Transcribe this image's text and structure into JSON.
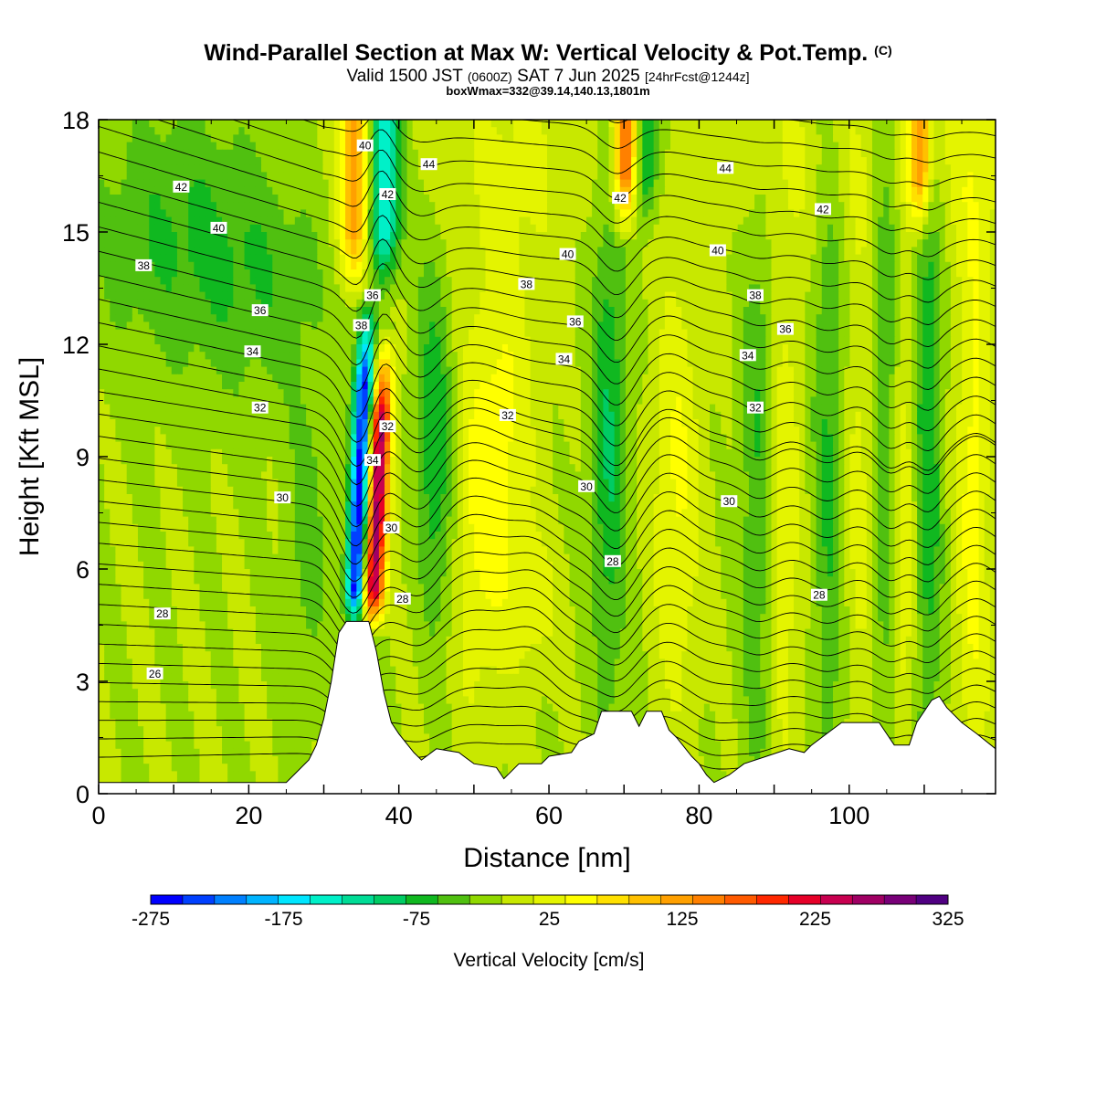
{
  "header": {
    "title": "Wind-Parallel Section at Max W: Vertical Velocity & Pot.Temp.",
    "copyright": "(C)",
    "valid_prefix": "Valid 1500 JST",
    "valid_utc": "(0600Z)",
    "valid_date": "SAT 7 Jun 2025",
    "forecast_info": "[24hrFcst@1244z]",
    "box_info": "boxWmax=332@39.14,140.13,1801m"
  },
  "chart_data": {
    "type": "heatmap",
    "xlabel": "Distance [nm]",
    "ylabel": "Height [Kft MSL]",
    "xlim": [
      0,
      119.5
    ],
    "ylim": [
      0,
      18
    ],
    "x_ticks": [
      0,
      20,
      40,
      60,
      80,
      100
    ],
    "y_ticks": [
      0,
      3,
      6,
      9,
      12,
      15,
      18
    ],
    "colorbar": {
      "title": "Vertical Velocity [cm/s]",
      "levels": [
        -275,
        -250,
        -225,
        -200,
        -175,
        -150,
        -125,
        -100,
        -75,
        -50,
        -25,
        0,
        25,
        50,
        75,
        100,
        125,
        150,
        175,
        200,
        225,
        250,
        275,
        300,
        325
      ],
      "labels": [
        "-275",
        "-175",
        "-75",
        "25",
        "125",
        "225",
        "325"
      ],
      "colors": [
        "#0000ff",
        "#0040ff",
        "#0080ff",
        "#00b4ff",
        "#00e6ff",
        "#00f0c8",
        "#00dc96",
        "#00cc64",
        "#10b820",
        "#50c010",
        "#90d800",
        "#c8e800",
        "#e4f400",
        "#ffff00",
        "#ffe000",
        "#ffc000",
        "#ffa000",
        "#ff8000",
        "#ff5a00",
        "#ff2800",
        "#e60028",
        "#c80050",
        "#a00064",
        "#780078",
        "#500082"
      ]
    },
    "terrain_kft": [
      [
        0,
        0.3
      ],
      [
        25,
        0.3
      ],
      [
        26,
        0.5
      ],
      [
        28,
        0.9
      ],
      [
        29,
        1.3
      ],
      [
        30,
        2.0
      ],
      [
        31,
        3.0
      ],
      [
        32,
        4.3
      ],
      [
        33,
        4.6
      ],
      [
        36,
        4.6
      ],
      [
        37,
        3.8
      ],
      [
        38,
        2.7
      ],
      [
        39,
        1.9
      ],
      [
        40,
        1.6
      ],
      [
        42,
        1.1
      ],
      [
        43,
        0.9
      ],
      [
        45,
        1.2
      ],
      [
        48,
        1.1
      ],
      [
        50,
        0.8
      ],
      [
        53,
        0.7
      ],
      [
        54,
        0.4
      ],
      [
        56,
        0.8
      ],
      [
        59,
        0.8
      ],
      [
        60,
        1.0
      ],
      [
        63,
        1.1
      ],
      [
        64,
        1.4
      ],
      [
        66,
        1.6
      ],
      [
        67,
        2.2
      ],
      [
        71,
        2.2
      ],
      [
        72,
        1.8
      ],
      [
        73,
        2.2
      ],
      [
        75,
        2.2
      ],
      [
        76,
        1.7
      ],
      [
        77,
        1.5
      ],
      [
        79,
        1.0
      ],
      [
        80,
        0.8
      ],
      [
        81,
        0.5
      ],
      [
        82,
        0.3
      ],
      [
        84,
        0.5
      ],
      [
        86,
        0.8
      ],
      [
        89,
        1.0
      ],
      [
        92,
        1.2
      ],
      [
        94,
        1.1
      ],
      [
        95,
        1.3
      ],
      [
        97,
        1.6
      ],
      [
        99,
        1.9
      ],
      [
        104,
        1.9
      ],
      [
        105,
        1.6
      ],
      [
        106,
        1.3
      ],
      [
        108,
        1.3
      ],
      [
        109,
        1.9
      ],
      [
        111,
        2.5
      ],
      [
        112,
        2.6
      ],
      [
        113,
        2.3
      ],
      [
        115,
        1.9
      ],
      [
        117,
        1.6
      ],
      [
        119.5,
        1.2
      ]
    ],
    "isentrope_labels": [
      {
        "text": "42",
        "x": 11,
        "y": 16.2
      },
      {
        "text": "40",
        "x": 16,
        "y": 15.1
      },
      {
        "text": "38",
        "x": 6,
        "y": 14.1
      },
      {
        "text": "36",
        "x": 21.5,
        "y": 12.9
      },
      {
        "text": "34",
        "x": 20.5,
        "y": 11.8
      },
      {
        "text": "32",
        "x": 21.5,
        "y": 10.3
      },
      {
        "text": "30",
        "x": 24.5,
        "y": 7.9
      },
      {
        "text": "28",
        "x": 8.5,
        "y": 4.8
      },
      {
        "text": "26",
        "x": 7.5,
        "y": 3.2
      },
      {
        "text": "40",
        "x": 35.5,
        "y": 17.3
      },
      {
        "text": "44",
        "x": 44,
        "y": 16.8
      },
      {
        "text": "42",
        "x": 38.5,
        "y": 16.0
      },
      {
        "text": "36",
        "x": 36.5,
        "y": 13.3
      },
      {
        "text": "38",
        "x": 35,
        "y": 12.5
      },
      {
        "text": "32",
        "x": 38.5,
        "y": 9.8
      },
      {
        "text": "34",
        "x": 36.5,
        "y": 8.9
      },
      {
        "text": "30",
        "x": 39,
        "y": 7.1
      },
      {
        "text": "28",
        "x": 40.5,
        "y": 5.2
      },
      {
        "text": "32",
        "x": 54.5,
        "y": 10.1
      },
      {
        "text": "42",
        "x": 69.5,
        "y": 15.9
      },
      {
        "text": "40",
        "x": 62.5,
        "y": 14.4
      },
      {
        "text": "38",
        "x": 57,
        "y": 13.6
      },
      {
        "text": "36",
        "x": 63.5,
        "y": 12.6
      },
      {
        "text": "34",
        "x": 62,
        "y": 11.6
      },
      {
        "text": "30",
        "x": 65,
        "y": 8.2
      },
      {
        "text": "28",
        "x": 68.5,
        "y": 6.2
      },
      {
        "text": "44",
        "x": 83.5,
        "y": 16.7
      },
      {
        "text": "42",
        "x": 96.5,
        "y": 15.6
      },
      {
        "text": "40",
        "x": 82.5,
        "y": 14.5
      },
      {
        "text": "38",
        "x": 87.5,
        "y": 13.3
      },
      {
        "text": "36",
        "x": 91.5,
        "y": 12.4
      },
      {
        "text": "34",
        "x": 86.5,
        "y": 11.7
      },
      {
        "text": "32",
        "x": 87.5,
        "y": 10.3
      },
      {
        "text": "30",
        "x": 84,
        "y": 7.8
      },
      {
        "text": "28",
        "x": 96,
        "y": 5.3
      }
    ]
  }
}
